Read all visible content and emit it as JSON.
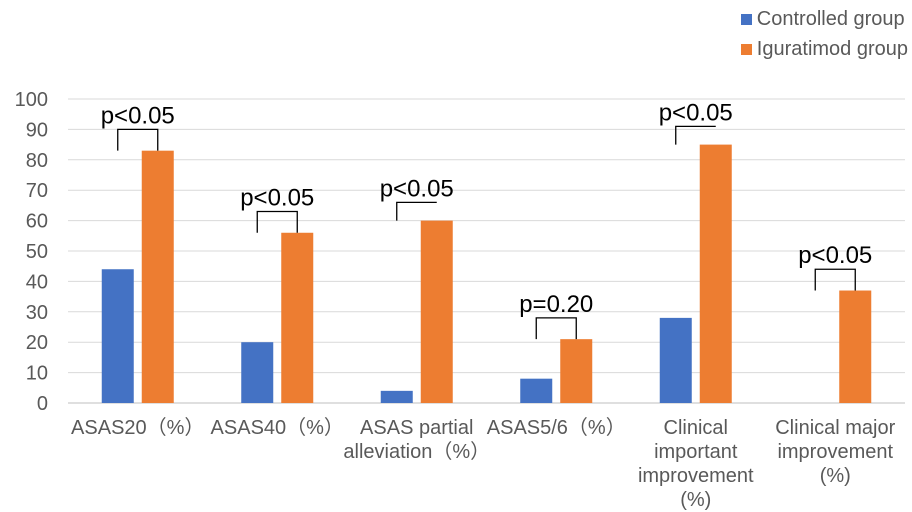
{
  "chart_data": {
    "type": "bar",
    "categories": [
      [
        "ASAS20（%）"
      ],
      [
        "ASAS40（%）"
      ],
      [
        "ASAS partial",
        "alleviation（%）"
      ],
      [
        "ASAS5/6（%）"
      ],
      [
        "Clinical",
        "important",
        "improvement",
        "(%)"
      ],
      [
        "Clinical major",
        "improvement",
        "(%)"
      ]
    ],
    "series": [
      {
        "name": "Controlled group",
        "color": "#4472C4",
        "values": [
          44,
          20,
          4,
          8,
          28,
          0
        ]
      },
      {
        "name": "Iguratimod group",
        "color": "#ED7D31",
        "values": [
          83,
          56,
          60,
          21,
          85,
          37
        ]
      }
    ],
    "yticks": [
      0,
      10,
      20,
      30,
      40,
      50,
      60,
      70,
      80,
      90,
      100
    ],
    "ylim": [
      0,
      100
    ],
    "grid": true,
    "legend_position": "top-right",
    "annotations": [
      {
        "category": 0,
        "text": "p<0.05",
        "left_y": 83,
        "right_y": 83,
        "top_y": 90
      },
      {
        "category": 1,
        "text": "p<0.05",
        "left_y": 56,
        "right_y": 56,
        "top_y": 63
      },
      {
        "category": 2,
        "text": "p<0.05",
        "left_y": 60,
        "right_y": 66,
        "top_y": 66
      },
      {
        "category": 3,
        "text": "p=0.20",
        "left_y": 21,
        "right_y": 21,
        "top_y": 28
      },
      {
        "category": 4,
        "text": "p<0.05",
        "left_y": 85,
        "right_y": 91,
        "top_y": 91
      },
      {
        "category": 5,
        "text": "p<0.05",
        "left_y": 37,
        "right_y": 37,
        "top_y": 44
      }
    ]
  }
}
